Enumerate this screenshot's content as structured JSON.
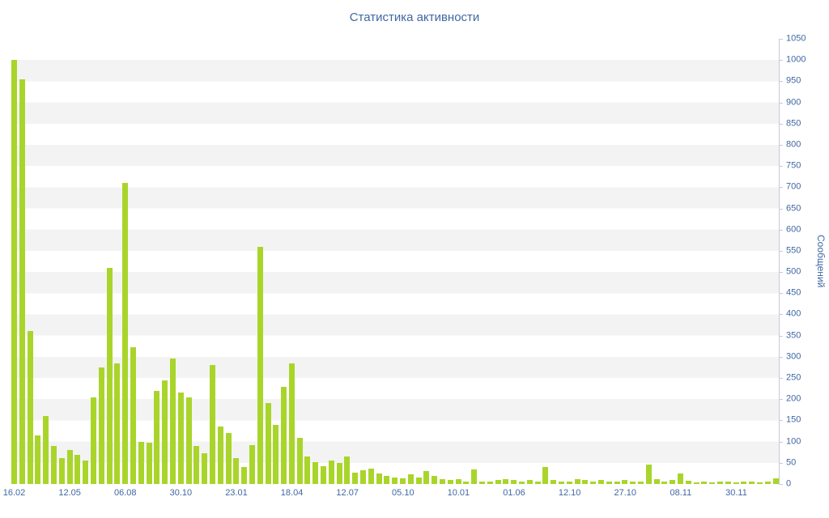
{
  "page": {
    "background": "#ffffff"
  },
  "chart_data": {
    "type": "bar",
    "title": "Статистика активности",
    "ylabel": "Сообщений",
    "xlabel": "",
    "ylim": [
      0,
      1050
    ],
    "y_tick_step": 50,
    "y_ticks": [
      0,
      50,
      100,
      150,
      200,
      250,
      300,
      350,
      400,
      450,
      500,
      550,
      600,
      650,
      700,
      750,
      800,
      850,
      900,
      950,
      1000,
      1050
    ],
    "x_tick_labels": [
      "16.02",
      "12.05",
      "06.08",
      "30.10",
      "23.01",
      "18.04",
      "12.07",
      "05.10",
      "10.01",
      "01.06",
      "12.10",
      "27.10",
      "08.11",
      "30.11"
    ],
    "bars_per_tick": 7,
    "values": [
      1000,
      955,
      360,
      115,
      160,
      90,
      62,
      80,
      68,
      55,
      205,
      275,
      510,
      285,
      710,
      322,
      100,
      97,
      220,
      245,
      295,
      215,
      205,
      90,
      73,
      280,
      135,
      120,
      62,
      40,
      92,
      560,
      190,
      140,
      230,
      285,
      108,
      65,
      52,
      42,
      55,
      50,
      64,
      26,
      32,
      36,
      25,
      20,
      16,
      14,
      22,
      15,
      30,
      20,
      12,
      10,
      11,
      6,
      35,
      6,
      5,
      10,
      12,
      10,
      6,
      10,
      5,
      40,
      10,
      6,
      5,
      12,
      10,
      5,
      10,
      6,
      5,
      10,
      6,
      5,
      45,
      12,
      5,
      10,
      25,
      8,
      4,
      5,
      4,
      6,
      5,
      4,
      6,
      5,
      4,
      5,
      14
    ],
    "grid": "horizontal-striped-bands",
    "legend": "none",
    "y_axis_position": "right",
    "colors": {
      "bar": "#a9d52b",
      "axis_text": "#4067a2",
      "axis_line": "#c3cbd9",
      "stripe": "#f3f3f3",
      "background": "#ffffff"
    }
  }
}
